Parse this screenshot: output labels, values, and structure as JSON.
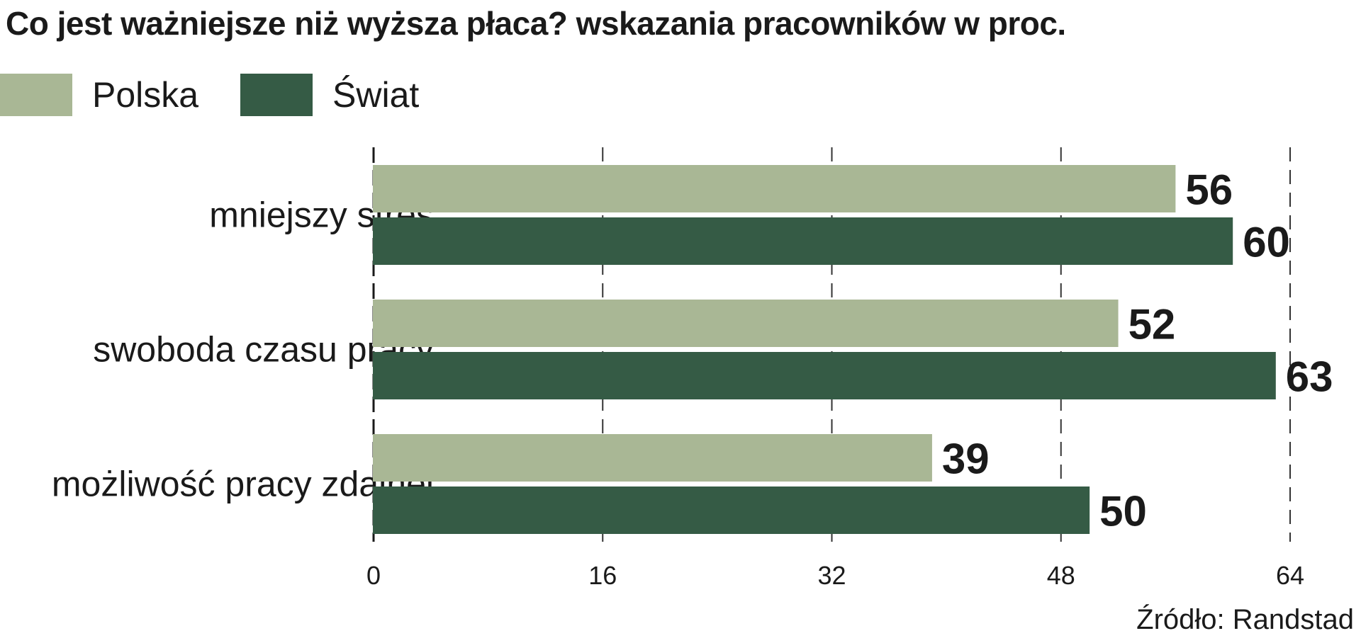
{
  "chart_data": {
    "type": "bar",
    "orientation": "horizontal",
    "title": "Co jest ważniejsze niż wyższa płaca? wskazania pracowników w proc.",
    "categories": [
      "mniejszy stres",
      "swoboda czasu pracy",
      "możliwość pracy zdalnej"
    ],
    "series": [
      {
        "name": "Polska",
        "color": "#a9b795",
        "values": [
          56,
          52,
          39
        ]
      },
      {
        "name": "Świat",
        "color": "#355b45",
        "values": [
          60,
          63,
          50
        ]
      }
    ],
    "xlim": [
      0,
      64
    ],
    "xticks": [
      0,
      16,
      32,
      48,
      64
    ],
    "grid": true,
    "legend_position": "top-left",
    "source": "Źródło: Randstad"
  }
}
